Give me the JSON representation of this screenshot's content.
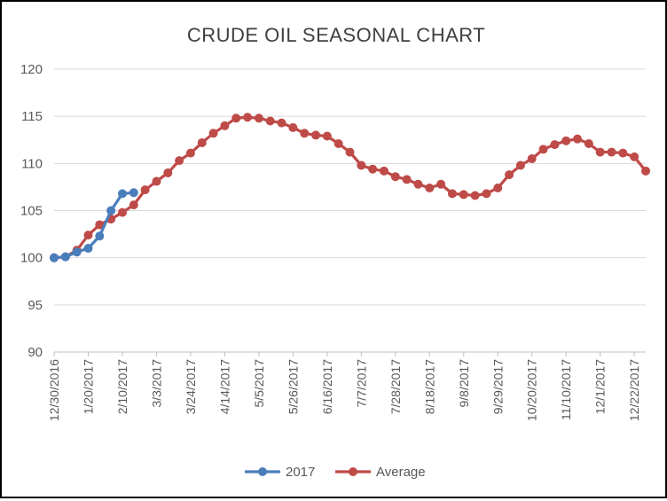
{
  "chart_data": {
    "type": "line",
    "title": "CRUDE OIL SEASONAL CHART",
    "xlabel": "",
    "ylabel": "",
    "ylim": [
      90,
      120
    ],
    "yticks": [
      90,
      95,
      100,
      105,
      110,
      115,
      120
    ],
    "grid": true,
    "legend": "bottom",
    "xtick_labels": [
      "12/30/2016",
      "1/20/2017",
      "2/10/2017",
      "3/3/2017",
      "3/24/2017",
      "4/14/2017",
      "5/5/2017",
      "5/26/2017",
      "6/16/2017",
      "7/7/2017",
      "7/28/2017",
      "8/18/2017",
      "9/8/2017",
      "9/29/2017",
      "10/20/2017",
      "11/10/2017",
      "12/1/2017",
      "12/22/2017"
    ],
    "x_dates": [
      "12/30/2016",
      "1/6/2017",
      "1/13/2017",
      "1/20/2017",
      "1/27/2017",
      "2/3/2017",
      "2/10/2017",
      "2/17/2017",
      "2/24/2017",
      "3/3/2017",
      "3/10/2017",
      "3/17/2017",
      "3/24/2017",
      "3/31/2017",
      "4/7/2017",
      "4/14/2017",
      "4/21/2017",
      "4/28/2017",
      "5/5/2017",
      "5/12/2017",
      "5/19/2017",
      "5/26/2017",
      "6/2/2017",
      "6/9/2017",
      "6/16/2017",
      "6/23/2017",
      "6/30/2017",
      "7/7/2017",
      "7/14/2017",
      "7/21/2017",
      "7/28/2017",
      "8/4/2017",
      "8/11/2017",
      "8/18/2017",
      "8/25/2017",
      "9/1/2017",
      "9/8/2017",
      "9/15/2017",
      "9/22/2017",
      "9/29/2017",
      "10/6/2017",
      "10/13/2017",
      "10/20/2017",
      "10/27/2017",
      "11/3/2017",
      "11/10/2017",
      "11/17/2017",
      "11/24/2017",
      "12/1/2017",
      "12/8/2017",
      "12/15/2017",
      "12/22/2017",
      "12/29/2017"
    ],
    "series": [
      {
        "name": "2017",
        "color": "#4a7ebb",
        "values": [
          100.0,
          100.1,
          100.6,
          101.0,
          102.3,
          105.0,
          106.8,
          106.9
        ]
      },
      {
        "name": "Average",
        "color": "#be4b48",
        "values": [
          100.0,
          100.1,
          100.8,
          102.4,
          103.5,
          104.1,
          104.8,
          105.6,
          107.2,
          108.1,
          109.0,
          110.3,
          111.1,
          112.2,
          113.2,
          114.0,
          114.8,
          114.9,
          114.8,
          114.5,
          114.3,
          113.8,
          113.2,
          113.0,
          112.9,
          112.1,
          111.2,
          109.8,
          109.4,
          109.2,
          108.6,
          108.3,
          107.8,
          107.4,
          107.8,
          106.8,
          106.7,
          106.6,
          106.8,
          107.4,
          108.8,
          109.8,
          110.5,
          111.5,
          112.0,
          112.4,
          112.6,
          112.1,
          111.2,
          111.2,
          111.1,
          110.7,
          109.2
        ]
      }
    ]
  }
}
